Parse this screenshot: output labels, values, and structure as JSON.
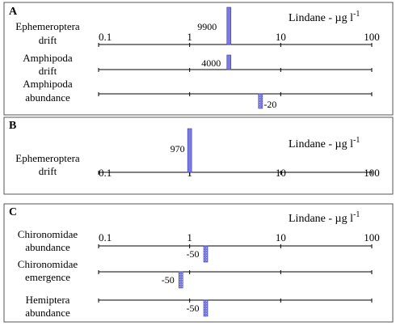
{
  "chart_data": [
    {
      "type": "bar",
      "panel": "A",
      "xlabel": "Lindane - µg l",
      "xlabel_sup": "-1",
      "x_scale": "log",
      "xlim": [
        0.1,
        100
      ],
      "ticks": [
        "0.1",
        "1",
        "10",
        "100"
      ],
      "rows": [
        {
          "label": [
            "Ephemeroptera",
            "drift"
          ],
          "x": 2.7,
          "value": 9900,
          "value_label": "9900",
          "direction": "up"
        },
        {
          "label": [
            "Amphipoda",
            "drift"
          ],
          "x": 2.7,
          "value": 4000,
          "value_label": "4000",
          "direction": "up"
        },
        {
          "label": [
            "Amphipoda",
            "abundance"
          ],
          "x": 6,
          "value": -20,
          "value_label": "-20",
          "direction": "down"
        }
      ]
    },
    {
      "type": "bar",
      "panel": "B",
      "xlabel": "Lindane - µg l",
      "xlabel_sup": "-1",
      "x_scale": "log",
      "xlim": [
        0.1,
        100
      ],
      "ticks": [
        "0.1",
        "1",
        "10",
        "100"
      ],
      "rows": [
        {
          "label": [
            "Ephemeroptera",
            "drift"
          ],
          "x": 1,
          "value": 970,
          "value_label": "970",
          "direction": "up"
        }
      ]
    },
    {
      "type": "bar",
      "panel": "C",
      "xlabel": "Lindane - µg l",
      "xlabel_sup": "-1",
      "x_scale": "log",
      "xlim": [
        0.1,
        100
      ],
      "ticks": [
        "0.1",
        "1",
        "10",
        "100"
      ],
      "rows": [
        {
          "label": [
            "Chironomidae",
            "abundance"
          ],
          "x": 1.5,
          "value": -50,
          "value_label": "-50",
          "direction": "down"
        },
        {
          "label": [
            "Chironomidae",
            "emergence"
          ],
          "x": 0.8,
          "value": -50,
          "value_label": "-50",
          "direction": "down"
        },
        {
          "label": [
            "Hemiptera",
            "abundance"
          ],
          "x": 1.5,
          "value": -50,
          "value_label": "-50",
          "direction": "down"
        }
      ]
    }
  ],
  "colors": {
    "bar_fill": "#7b7bdc",
    "bar_stroke": "#3a3ab0",
    "axis": "#000000",
    "frame": "#555555"
  }
}
